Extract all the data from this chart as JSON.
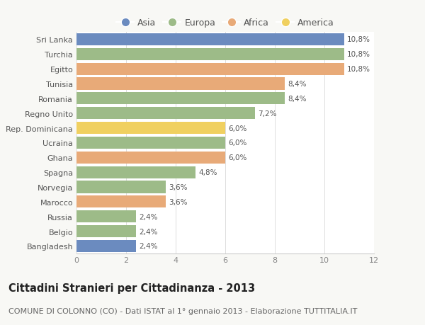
{
  "categories": [
    "Sri Lanka",
    "Turchia",
    "Egitto",
    "Tunisia",
    "Romania",
    "Regno Unito",
    "Rep. Dominicana",
    "Ucraina",
    "Ghana",
    "Spagna",
    "Norvegia",
    "Marocco",
    "Russia",
    "Belgio",
    "Bangladesh"
  ],
  "values": [
    10.8,
    10.8,
    10.8,
    8.4,
    8.4,
    7.2,
    6.0,
    6.0,
    6.0,
    4.8,
    3.6,
    3.6,
    2.4,
    2.4,
    2.4
  ],
  "labels": [
    "10,8%",
    "10,8%",
    "10,8%",
    "8,4%",
    "8,4%",
    "7,2%",
    "6,0%",
    "6,0%",
    "6,0%",
    "4,8%",
    "3,6%",
    "3,6%",
    "2,4%",
    "2,4%",
    "2,4%"
  ],
  "continents": [
    "Asia",
    "Europa",
    "Africa",
    "Africa",
    "Europa",
    "Europa",
    "America",
    "Europa",
    "Africa",
    "Europa",
    "Europa",
    "Africa",
    "Europa",
    "Europa",
    "Asia"
  ],
  "colors": {
    "Asia": "#6b8bbf",
    "Europa": "#9dbb88",
    "Africa": "#e8aa78",
    "America": "#f0d060"
  },
  "legend_order": [
    "Asia",
    "Europa",
    "Africa",
    "America"
  ],
  "xlim": [
    0,
    12
  ],
  "xticks": [
    0,
    2,
    4,
    6,
    8,
    10,
    12
  ],
  "title": "Cittadini Stranieri per Cittadinanza - 2013",
  "subtitle": "COMUNE DI COLONNO (CO) - Dati ISTAT al 1° gennaio 2013 - Elaborazione TUTTITALIA.IT",
  "background_color": "#f8f8f5",
  "bar_height": 0.82,
  "title_fontsize": 10.5,
  "subtitle_fontsize": 8,
  "label_fontsize": 7.5,
  "tick_fontsize": 8,
  "legend_fontsize": 9
}
